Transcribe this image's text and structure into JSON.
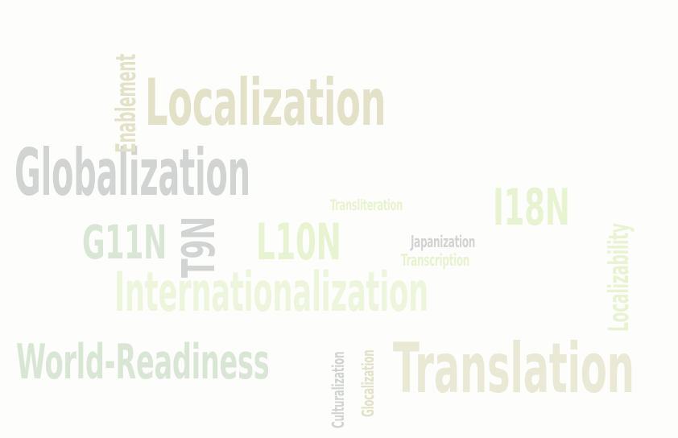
{
  "words": [
    {
      "text": "Internationalization",
      "color": "#edf6dc"
    },
    {
      "text": "Localization",
      "color": "#e3e1c8"
    },
    {
      "text": "Globalization",
      "color": "#d2d4d4"
    },
    {
      "text": "Translation",
      "color": "#e9e9d6"
    },
    {
      "text": "World-Readiness",
      "color": "#dae6d5"
    },
    {
      "text": "I18N",
      "color": "#e8f3d2"
    },
    {
      "text": "L10N",
      "color": "#e8f3d2"
    },
    {
      "text": "G11N",
      "color": "#dae6d5"
    },
    {
      "text": "T9N",
      "color": "#d2d4d4"
    },
    {
      "text": "Enablement",
      "color": "#e3e1c8"
    },
    {
      "text": "Localizability",
      "color": "#e8f3d2"
    },
    {
      "text": "Transliteration",
      "color": "#e8f3d2"
    },
    {
      "text": "Japanization",
      "color": "#d2d4d4"
    },
    {
      "text": "Transcription",
      "color": "#e8f3d2"
    },
    {
      "text": "Culturalization",
      "color": "#d2d4d4"
    },
    {
      "text": "Glocalization",
      "color": "#e3e1c8"
    }
  ]
}
